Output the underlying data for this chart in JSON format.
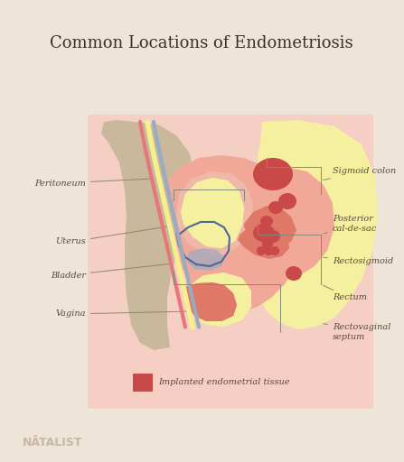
{
  "title": "Common Locations of Endometriosis",
  "title_fontsize": 13,
  "background_color": "#ede5d8",
  "panel_color": "#f5cfc4",
  "tan_body_color": "#c9b89c",
  "yellow_color": "#f5f0a0",
  "pink_outer": "#f2a898",
  "pink_medium": "#f0b8a8",
  "pink_light": "#f5cfc4",
  "dark_pink": "#e07868",
  "red_tissue": "#c94848",
  "blue_outline": "#4a6898",
  "blue_gray": "#9aaac0",
  "text_color": "#5a4a3a",
  "label_fontsize": 7.0,
  "legend_text": "Implanted endometrial tissue",
  "brand_text": "NĀTALIST"
}
